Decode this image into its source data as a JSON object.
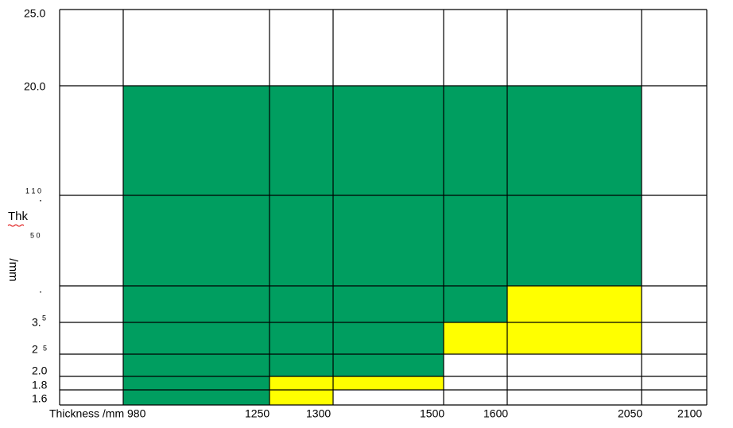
{
  "x_labels": [
    "Thickness /mm 980",
    "1250",
    "1300",
    "1500",
    "1600",
    "2050",
    "2100"
  ],
  "y_labels": {
    "top": "25.0",
    "upper": "20.0",
    "mid_small_a": "1 1 0",
    "dot_a": ".",
    "axis_title": "Thk",
    "mid_small_b": "5 0",
    "axis_unit": "/mm",
    "dot_b": ".",
    "three": "3.",
    "three_sup": "5",
    "two_five": "2",
    "two_five_sup": "5",
    "two": "2.0",
    "one_eight": "1.8",
    "one_six": "1.6"
  }
}
